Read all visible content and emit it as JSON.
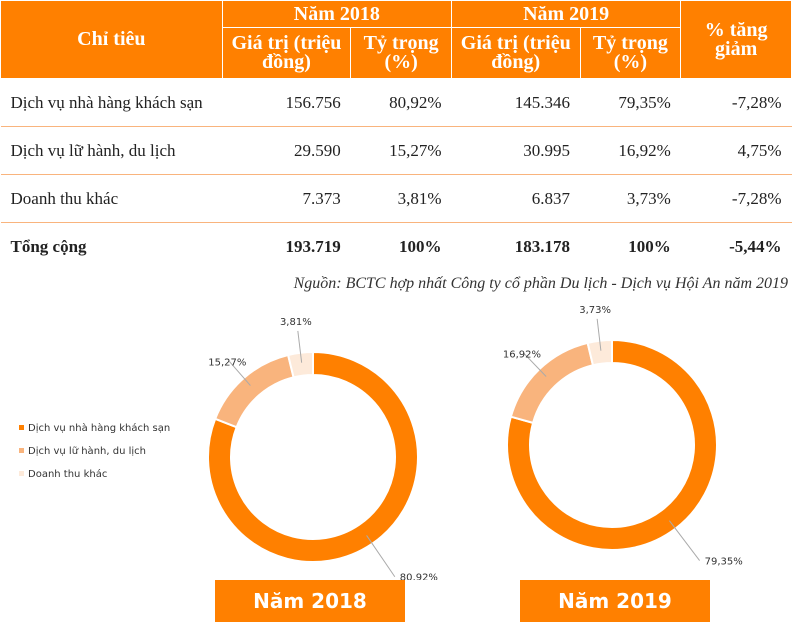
{
  "table": {
    "col_indicator": "Chỉ tiêu",
    "year1": "Năm 2018",
    "year2": "Năm 2019",
    "sub_value": "Giá trị (triệu đồng)",
    "sub_share": "Tỷ trọng (%)",
    "col_change": "% tăng giảm",
    "rows": [
      {
        "name": "Dịch vụ nhà hàng khách sạn",
        "v2018": "156.756",
        "s2018": "80,92%",
        "v2019": "145.346",
        "s2019": "79,35%",
        "change": "-7,28%"
      },
      {
        "name": "Dịch vụ lữ hành, du lịch",
        "v2018": "29.590",
        "s2018": "15,27%",
        "v2019": "30.995",
        "s2019": "16,92%",
        "change": "4,75%"
      },
      {
        "name": "Doanh thu khác",
        "v2018": "7.373",
        "s2018": "3,81%",
        "v2019": "6.837",
        "s2019": "3,73%",
        "change": "-7,28%"
      }
    ],
    "total": {
      "name": "Tổng cộng",
      "v2018": "193.719",
      "s2018": "100%",
      "v2019": "183.178",
      "s2019": "100%",
      "change": "-5,44%"
    }
  },
  "source": "Nguồn: BCTC hợp nhất Công ty cổ phần Du lịch - Dịch vụ Hội An năm 2019",
  "chart_data": [
    {
      "type": "pie",
      "donut": true,
      "title": "Năm 2018",
      "categories": [
        "Dịch vụ nhà hàng khách sạn",
        "Dịch vụ lữ hành, du lịch",
        "Doanh thu khác"
      ],
      "values": [
        80.92,
        15.27,
        3.81
      ],
      "labels": [
        "80,92%",
        "15,27%",
        "3,81%"
      ],
      "colors": [
        "#FF8000",
        "#F9B47D",
        "#FDEADA"
      ],
      "legend": "left"
    },
    {
      "type": "pie",
      "donut": true,
      "title": "Năm 2019",
      "categories": [
        "Dịch vụ nhà hàng khách sạn",
        "Dịch vụ lữ hành, du lịch",
        "Doanh thu khác"
      ],
      "values": [
        79.35,
        16.92,
        3.73
      ],
      "labels": [
        "79,35%",
        "16,92%",
        "3,73%"
      ],
      "colors": [
        "#FF8000",
        "#F9B47D",
        "#FDEADA"
      ]
    }
  ]
}
